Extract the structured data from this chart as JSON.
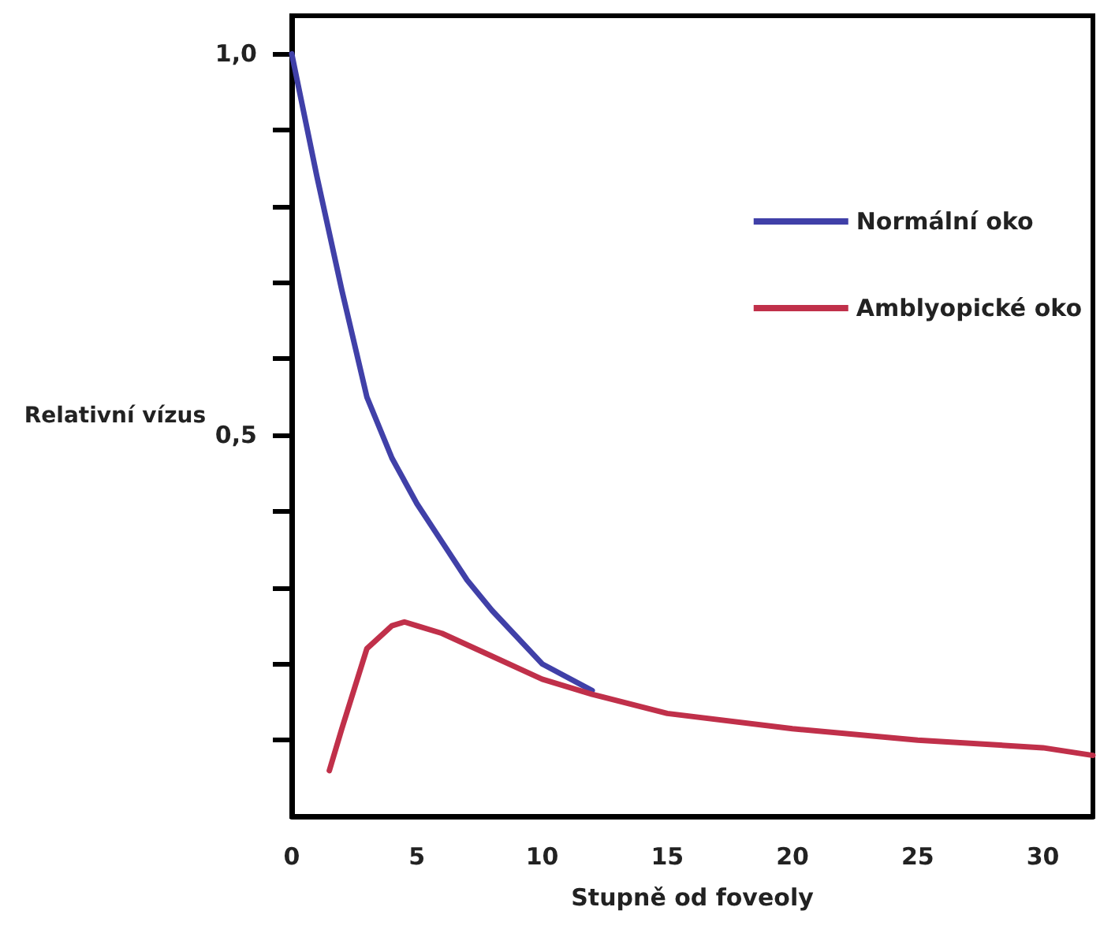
{
  "chart_data": {
    "type": "line",
    "xlabel": "Stupně od foveoly",
    "ylabel": "Relativní vízus",
    "xlim": [
      0,
      32
    ],
    "xticks": [
      0,
      5,
      10,
      15,
      20,
      25,
      30
    ],
    "ylim": [
      0,
      1.05
    ],
    "yticks": [
      {
        "value": 0.1,
        "label": null
      },
      {
        "value": 0.2,
        "label": null
      },
      {
        "value": 0.3,
        "label": null
      },
      {
        "value": 0.4,
        "label": null
      },
      {
        "value": 0.5,
        "label": "0,5"
      },
      {
        "value": 0.6,
        "label": null
      },
      {
        "value": 0.7,
        "label": null
      },
      {
        "value": 0.8,
        "label": null
      },
      {
        "value": 0.9,
        "label": null
      },
      {
        "value": 1.0,
        "label": "1,0"
      }
    ],
    "series": [
      {
        "name": "Normální oko",
        "color": "#4040a8",
        "x": [
          0,
          1,
          2,
          3,
          4,
          5,
          6,
          7,
          8,
          10,
          12
        ],
        "values": [
          1.0,
          0.84,
          0.69,
          0.55,
          0.47,
          0.41,
          0.36,
          0.31,
          0.27,
          0.2,
          0.165
        ]
      },
      {
        "name": "Amblyopické oko",
        "color": "#c0304a",
        "x": [
          1.5,
          2,
          3,
          4,
          4.5,
          5,
          6,
          8,
          10,
          12,
          15,
          20,
          25,
          30,
          32
        ],
        "values": [
          0.06,
          0.115,
          0.22,
          0.25,
          0.255,
          0.25,
          0.24,
          0.21,
          0.18,
          0.16,
          0.135,
          0.115,
          0.1,
          0.09,
          0.08
        ]
      }
    ],
    "legend": "top right",
    "grid": false,
    "marker": "none",
    "line_style": "solid"
  }
}
